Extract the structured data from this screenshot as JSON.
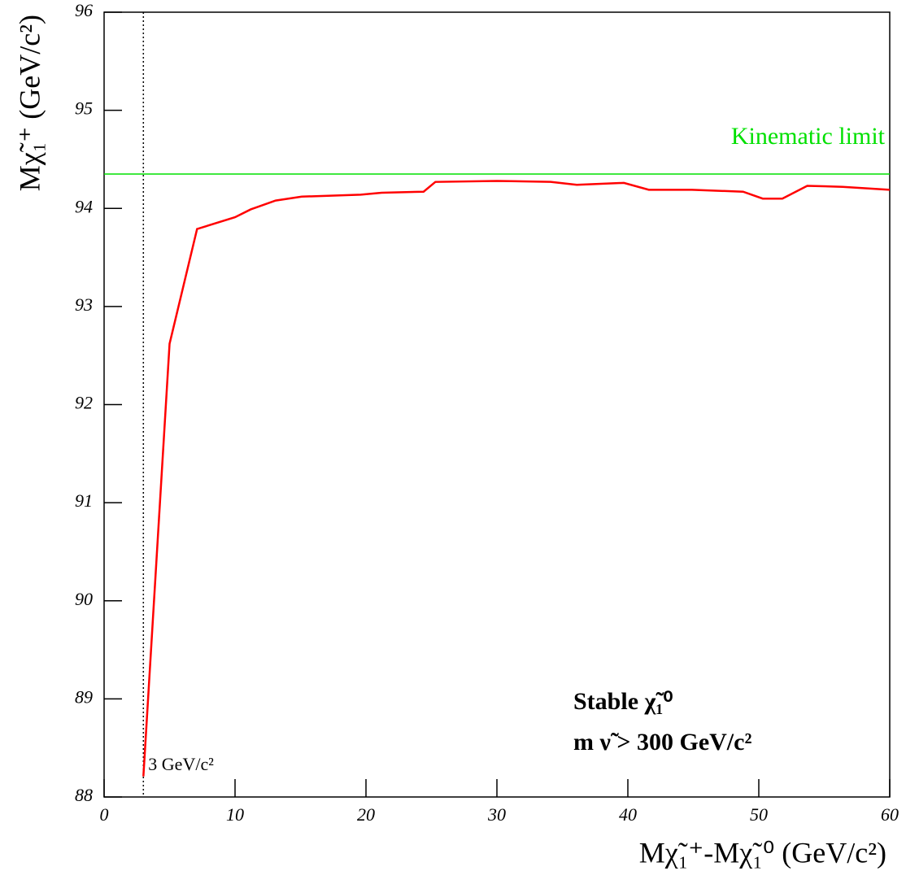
{
  "chart_data": {
    "type": "line",
    "x_label": "Mχ̃₁⁺-Mχ̃₁⁰ (GeV/c²)",
    "y_label": "Mχ̃₁⁺ (GeV/c²)",
    "x": [
      3,
      5,
      7.1,
      10,
      11.2,
      13.1,
      15.1,
      19.6,
      21.2,
      24.4,
      25.3,
      30,
      34.1,
      36.1,
      39.7,
      41.6,
      44.9,
      48.8,
      50.3,
      51.8,
      53.7,
      56.4,
      60
    ],
    "series": [
      {
        "color": "#ff0000",
        "values": [
          88.21,
          92.62,
          93.79,
          93.91,
          93.99,
          94.08,
          94.12,
          94.14,
          94.16,
          94.17,
          94.27,
          94.28,
          94.27,
          94.24,
          94.26,
          94.19,
          94.19,
          94.17,
          94.1,
          94.1,
          94.23,
          94.22,
          94.19
        ]
      }
    ],
    "xlim": [
      0,
      60
    ],
    "xticks": [
      0,
      10,
      20,
      30,
      40,
      50,
      60
    ],
    "ylim": [
      88,
      96
    ],
    "yticks": [
      88,
      89,
      90,
      91,
      92,
      93,
      94,
      95,
      96
    ],
    "hline": {
      "label": "Kinematic limit",
      "value": 94.35,
      "color": "#00e000"
    },
    "vline": {
      "label": "3 GeV/c²",
      "value": 3
    },
    "annotations": [
      "Stable χ̃₁⁰",
      "m ν̃ > 300 GeV/c²"
    ]
  }
}
